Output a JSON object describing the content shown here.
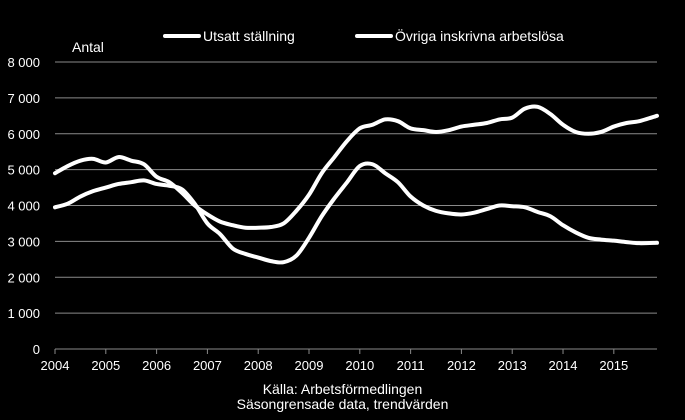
{
  "chart_data": {
    "type": "line",
    "title": "",
    "ylabel": "Antal",
    "xlabel": "",
    "ylim": [
      0,
      8000
    ],
    "xlim": [
      2004,
      2015.85
    ],
    "yticks": [
      0,
      1000,
      2000,
      3000,
      4000,
      5000,
      6000,
      7000,
      8000
    ],
    "ytick_labels": [
      "0",
      "1 000",
      "2 000",
      "3 000",
      "4 000",
      "5 000",
      "6 000",
      "7 000",
      "8 000"
    ],
    "xtick_labels": [
      "2004",
      "2005",
      "2006",
      "2007",
      "2008",
      "2009",
      "2010",
      "2011",
      "2012",
      "2013",
      "2014",
      "2015"
    ],
    "grid": true,
    "legend_position": "top",
    "series": [
      {
        "name": "Utsatt ställning",
        "color": "#ffffff",
        "x": [
          2004.0,
          2004.25,
          2004.5,
          2004.75,
          2005.0,
          2005.25,
          2005.5,
          2005.75,
          2006.0,
          2006.25,
          2006.5,
          2006.75,
          2007.0,
          2007.25,
          2007.5,
          2007.75,
          2008.0,
          2008.25,
          2008.5,
          2008.75,
          2009.0,
          2009.25,
          2009.5,
          2009.75,
          2010.0,
          2010.25,
          2010.5,
          2010.75,
          2011.0,
          2011.25,
          2011.5,
          2011.75,
          2012.0,
          2012.25,
          2012.5,
          2012.75,
          2013.0,
          2013.25,
          2013.5,
          2013.75,
          2014.0,
          2014.25,
          2014.5,
          2014.75,
          2015.0,
          2015.25,
          2015.5,
          2015.85
        ],
        "values": [
          4900,
          5100,
          5250,
          5300,
          5200,
          5350,
          5250,
          5150,
          4800,
          4650,
          4350,
          4000,
          3750,
          3550,
          3450,
          3380,
          3380,
          3400,
          3500,
          3850,
          4300,
          4900,
          5350,
          5800,
          6150,
          6250,
          6400,
          6350,
          6150,
          6100,
          6050,
          6100,
          6200,
          6250,
          6300,
          6400,
          6450,
          6700,
          6750,
          6550,
          6250,
          6050,
          6000,
          6050,
          6200,
          6300,
          6350,
          6500
        ]
      },
      {
        "name": "Övriga inskrivna arbetslösa",
        "color": "#ffffff",
        "x": [
          2004.0,
          2004.25,
          2004.5,
          2004.75,
          2005.0,
          2005.25,
          2005.5,
          2005.75,
          2006.0,
          2006.25,
          2006.5,
          2006.75,
          2007.0,
          2007.25,
          2007.5,
          2007.75,
          2008.0,
          2008.25,
          2008.5,
          2008.75,
          2009.0,
          2009.25,
          2009.5,
          2009.75,
          2010.0,
          2010.25,
          2010.5,
          2010.75,
          2011.0,
          2011.25,
          2011.5,
          2011.75,
          2012.0,
          2012.25,
          2012.5,
          2012.75,
          2013.0,
          2013.25,
          2013.5,
          2013.75,
          2014.0,
          2014.25,
          2014.5,
          2014.75,
          2015.0,
          2015.25,
          2015.5,
          2015.85
        ],
        "values": [
          3950,
          4050,
          4250,
          4400,
          4500,
          4600,
          4650,
          4700,
          4600,
          4550,
          4450,
          4050,
          3500,
          3200,
          2800,
          2650,
          2550,
          2450,
          2420,
          2600,
          3100,
          3700,
          4200,
          4650,
          5100,
          5150,
          4900,
          4650,
          4250,
          4000,
          3850,
          3780,
          3750,
          3800,
          3900,
          4000,
          3980,
          3950,
          3820,
          3700,
          3450,
          3250,
          3100,
          3050,
          3020,
          2980,
          2950,
          2960
        ]
      }
    ]
  },
  "source": {
    "line1": "Källa: Arbetsförmedlingen",
    "line2": "Säsongrensade data, trendvärden"
  }
}
